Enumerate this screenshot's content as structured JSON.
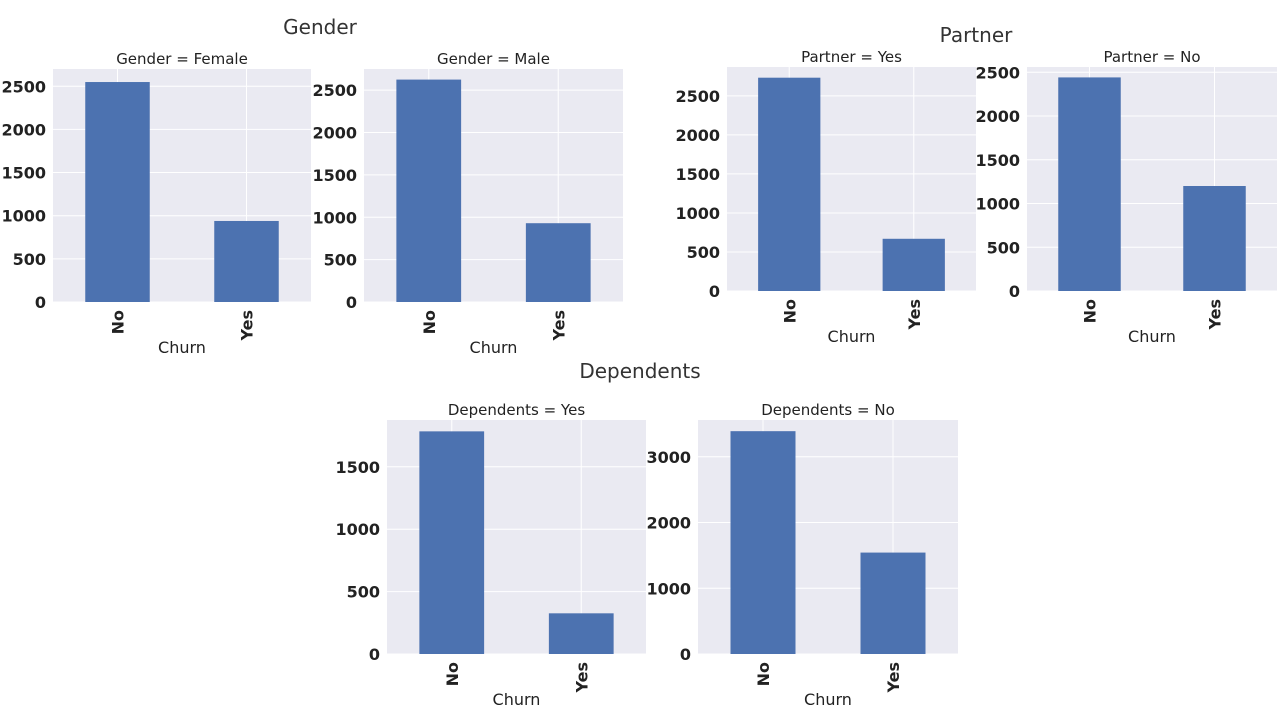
{
  "groups": [
    {
      "title": "Gender"
    },
    {
      "title": "Partner"
    },
    {
      "title": "Dependents"
    }
  ],
  "chart_data": [
    {
      "type": "bar",
      "group": "Gender",
      "title": "Gender = Female",
      "xlabel": "Churn",
      "ylabel": "",
      "categories": [
        "No",
        "Yes"
      ],
      "values": [
        2549,
        939
      ],
      "ylim": [
        0,
        2700
      ],
      "yticks": [
        0,
        500,
        1000,
        1500,
        2000,
        2500
      ],
      "color": "#4c72b0"
    },
    {
      "type": "bar",
      "group": "Gender",
      "title": "Gender = Male",
      "xlabel": "Churn",
      "ylabel": "",
      "categories": [
        "No",
        "Yes"
      ],
      "values": [
        2625,
        930
      ],
      "ylim": [
        0,
        2750
      ],
      "yticks": [
        0,
        500,
        1000,
        1500,
        2000,
        2500
      ],
      "color": "#4c72b0"
    },
    {
      "type": "bar",
      "group": "Partner",
      "title": "Partner = Yes",
      "xlabel": "Churn",
      "ylabel": "",
      "categories": [
        "No",
        "Yes"
      ],
      "values": [
        2733,
        669
      ],
      "ylim": [
        0,
        2870
      ],
      "yticks": [
        0,
        500,
        1000,
        1500,
        2000,
        2500
      ],
      "color": "#4c72b0"
    },
    {
      "type": "bar",
      "group": "Partner",
      "title": "Partner = No",
      "xlabel": "Churn",
      "ylabel": "",
      "categories": [
        "No",
        "Yes"
      ],
      "values": [
        2441,
        1200
      ],
      "ylim": [
        0,
        2560
      ],
      "yticks": [
        0,
        500,
        1000,
        1500,
        2000,
        2500
      ],
      "color": "#4c72b0"
    },
    {
      "type": "bar",
      "group": "Dependents",
      "title": "Dependents = Yes",
      "xlabel": "Churn",
      "ylabel": "",
      "categories": [
        "No",
        "Yes"
      ],
      "values": [
        1784,
        326
      ],
      "ylim": [
        0,
        1875
      ],
      "yticks": [
        0,
        500,
        1000,
        1500
      ],
      "color": "#4c72b0"
    },
    {
      "type": "bar",
      "group": "Dependents",
      "title": "Dependents = No",
      "xlabel": "Churn",
      "ylabel": "",
      "categories": [
        "No",
        "Yes"
      ],
      "values": [
        3390,
        1543
      ],
      "ylim": [
        0,
        3560
      ],
      "yticks": [
        0,
        1000,
        2000,
        3000
      ],
      "color": "#4c72b0"
    }
  ]
}
